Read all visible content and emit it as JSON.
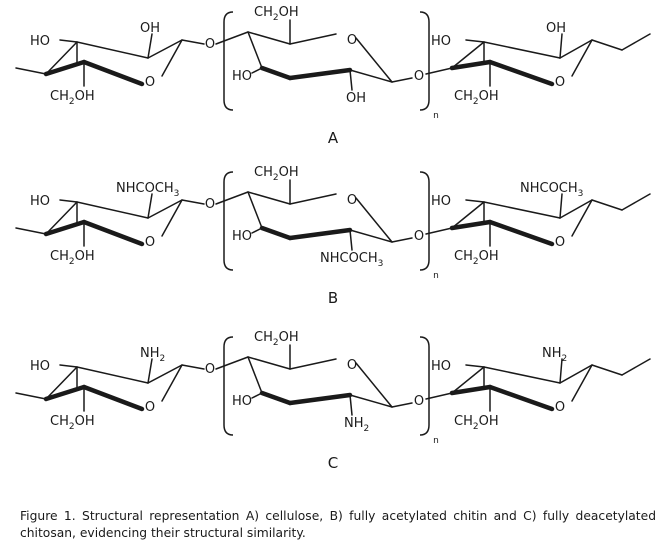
{
  "panels": [
    {
      "letter": "A",
      "ring_left": {
        "top_sub": "OH",
        "bottom_sub": "CH2OH"
      },
      "ring_middle": {
        "top_sub": "CH2OH",
        "bottom_sub": "OH"
      },
      "ring_right": {
        "top_sub": "OH",
        "bottom_sub": "CH2OH"
      }
    },
    {
      "letter": "B",
      "ring_left": {
        "top_sub": "NHCOCH3",
        "bottom_sub": "CH2OH"
      },
      "ring_middle": {
        "top_sub": "CH2OH",
        "bottom_sub": "NHCOCH3"
      },
      "ring_right": {
        "top_sub": "NHCOCH3",
        "bottom_sub": "CH2OH"
      }
    },
    {
      "letter": "C",
      "ring_left": {
        "top_sub": "NH2",
        "bottom_sub": "CH2OH"
      },
      "ring_middle": {
        "top_sub": "CH2OH",
        "bottom_sub": "NH2"
      },
      "ring_right": {
        "top_sub": "NH2",
        "bottom_sub": "CH2OH"
      }
    }
  ],
  "labels": {
    "hydroxyl_left": "HO",
    "ring_oxygen": "O",
    "bridge_oxygen": "O",
    "repeat_index": "n"
  },
  "caption": "Figure 1. Structural representation A) cellulose, B) fully acetylated chitin and C) fully deacetylated chitosan, evidencing their structural similarity."
}
